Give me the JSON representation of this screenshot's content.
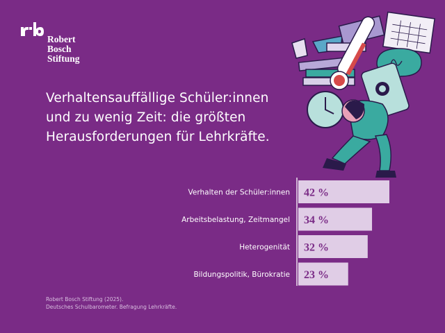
{
  "brand": {
    "logo_line1": "Robert Bosch",
    "logo_line2": "Stiftung"
  },
  "title": {
    "line1": "Verhaltensauffällige Schüler:innen",
    "line2": "und zu wenig Zeit: die größten",
    "line3": "Herausforderungen für Lehrkräfte."
  },
  "chart_data": {
    "type": "bar",
    "orientation": "horizontal",
    "categories": [
      "Verhalten der Schüler:innen",
      "Arbeitsbelastung, Zeitmangel",
      "Heterogenität",
      "Bildungspolitik, Bürokratie"
    ],
    "values": [
      42,
      34,
      32,
      23
    ],
    "value_labels": [
      "42 %",
      "34 %",
      "32 %",
      "23 %"
    ],
    "unit": "%",
    "xlim": [
      0,
      45
    ],
    "grid": false,
    "colors": {
      "bar": "#e0cde6",
      "background": "#7a2b86",
      "axis": "#ffffff",
      "value_text": "#7a2b86"
    }
  },
  "source": {
    "line1": "Robert Bosch Stiftung (2025).",
    "line2": "Deutsches Schulbarometer. Befragung Lehrkräfte."
  },
  "illustration": {
    "icons": [
      "thermometer-icon",
      "clock-icon",
      "phone-icon",
      "calendar-icon",
      "speech-bubble-icon",
      "books-icon",
      "paper-airplane-icon"
    ]
  }
}
